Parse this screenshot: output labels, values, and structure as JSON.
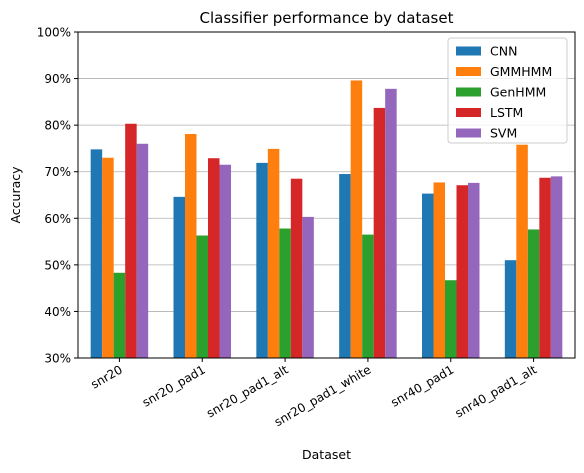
{
  "chart_data": {
    "type": "bar",
    "title": "Classifier performance by dataset",
    "xlabel": "Dataset",
    "ylabel": "Accuracy",
    "ylim": [
      0.3,
      1.0
    ],
    "y_ticks": [
      "30%",
      "40%",
      "50%",
      "60%",
      "70%",
      "80%",
      "90%",
      "100%"
    ],
    "y_tick_values": [
      0.3,
      0.4,
      0.5,
      0.6,
      0.7,
      0.8,
      0.9,
      1.0
    ],
    "grid": "horizontal",
    "legend_position": "top-right",
    "categories": [
      "snr20",
      "snr20_pad1",
      "snr20_pad1_alt",
      "snr20_pad1_white",
      "snr40_pad1",
      "snr40_pad1_alt"
    ],
    "series": [
      {
        "name": "CNN",
        "color": "#1f77b4",
        "values": [
          0.748,
          0.646,
          0.719,
          0.695,
          0.653,
          0.51
        ]
      },
      {
        "name": "GMMHMM",
        "color": "#ff7f0e",
        "values": [
          0.73,
          0.781,
          0.749,
          0.896,
          0.677,
          0.758
        ]
      },
      {
        "name": "GenHMM",
        "color": "#2ca02c",
        "values": [
          0.483,
          0.563,
          0.578,
          0.565,
          0.467,
          0.576
        ]
      },
      {
        "name": "LSTM",
        "color": "#d62728",
        "values": [
          0.803,
          0.729,
          0.685,
          0.837,
          0.671,
          0.687
        ]
      },
      {
        "name": "SVM",
        "color": "#9467bd",
        "values": [
          0.76,
          0.715,
          0.603,
          0.878,
          0.676,
          0.69
        ]
      }
    ]
  }
}
